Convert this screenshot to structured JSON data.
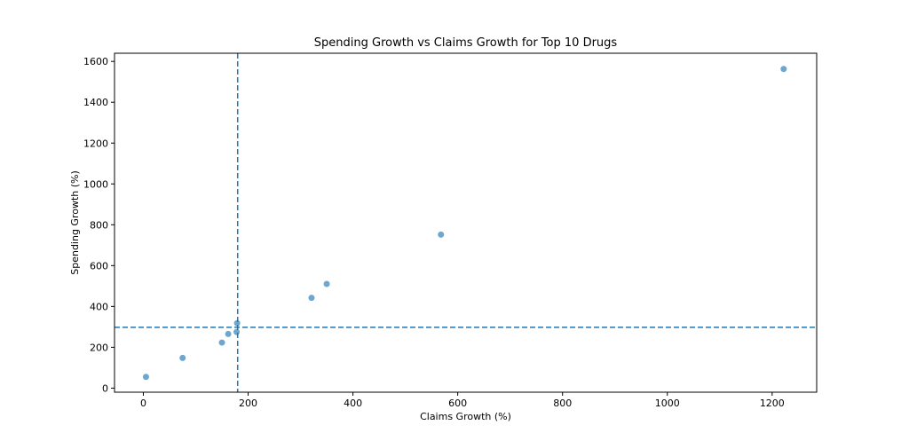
{
  "chart_data": {
    "type": "scatter",
    "title": "Spending Growth vs Claims Growth for Top 10 Drugs",
    "xlabel": "Claims Growth (%)",
    "ylabel": "Spending Growth (%)",
    "xlim": [
      -55,
      1285
    ],
    "ylim": [
      -20,
      1640
    ],
    "xticks": [
      0,
      200,
      400,
      600,
      800,
      1000,
      1200
    ],
    "yticks": [
      0,
      200,
      400,
      600,
      800,
      1000,
      1200,
      1400,
      1600
    ],
    "grid": false,
    "point_color": "#1f77b4",
    "reference_lines": [
      {
        "orientation": "vertical",
        "value": 180,
        "style": "dashed",
        "color": "#1f77b4"
      },
      {
        "orientation": "horizontal",
        "value": 298,
        "style": "dashed",
        "color": "#1f77b4"
      }
    ],
    "points": [
      {
        "x": 5,
        "y": 55
      },
      {
        "x": 75,
        "y": 148
      },
      {
        "x": 150,
        "y": 223
      },
      {
        "x": 162,
        "y": 265
      },
      {
        "x": 178,
        "y": 275
      },
      {
        "x": 179,
        "y": 318
      },
      {
        "x": 321,
        "y": 442
      },
      {
        "x": 350,
        "y": 510
      },
      {
        "x": 568,
        "y": 752
      },
      {
        "x": 1222,
        "y": 1563
      }
    ]
  }
}
